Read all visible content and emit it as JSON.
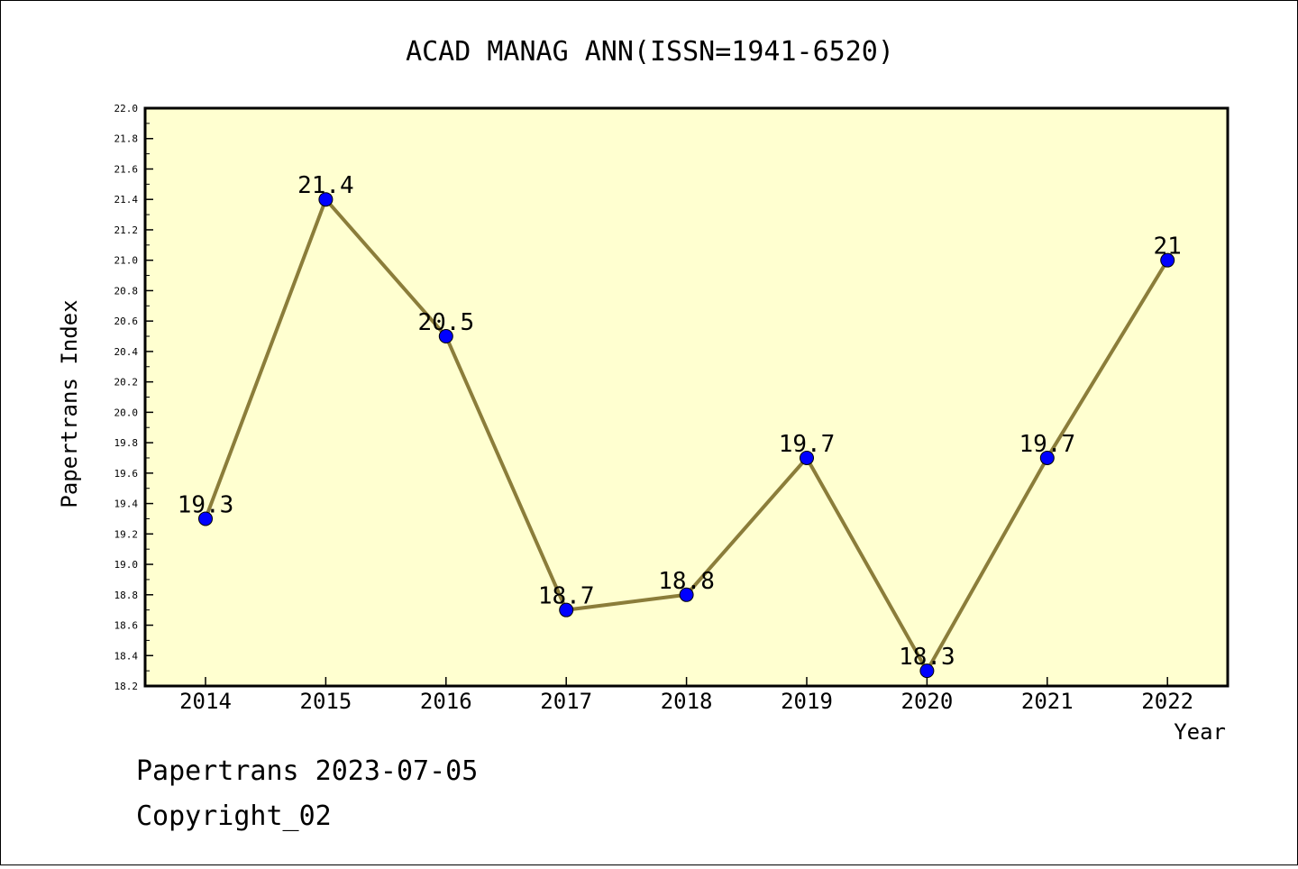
{
  "chart_data": {
    "type": "line",
    "title": "ACAD MANAG ANN(ISSN=1941-6520)",
    "xlabel": "Year",
    "ylabel": "Papertrans Index",
    "categories": [
      "2014",
      "2015",
      "2016",
      "2017",
      "2018",
      "2019",
      "2020",
      "2021",
      "2022"
    ],
    "values": [
      19.3,
      21.4,
      20.5,
      18.7,
      18.8,
      19.7,
      18.3,
      19.7,
      21
    ],
    "data_labels": [
      "19.3",
      "21.4",
      "20.5",
      "18.7",
      "18.8",
      "19.7",
      "18.3",
      "19.7",
      "21"
    ],
    "ylim": [
      18.2,
      22.0
    ],
    "yticks": [
      "18.2",
      "18.4",
      "18.6",
      "18.8",
      "19.0",
      "19.2",
      "19.4",
      "19.6",
      "19.8",
      "20.0",
      "20.2",
      "20.4",
      "20.6",
      "20.8",
      "21.0",
      "21.2",
      "21.4",
      "21.6",
      "21.8",
      "22.0"
    ],
    "grid": false,
    "line_color": "#8b7d3a",
    "marker_color": "#0000ff",
    "plot_background": "#ffffd0"
  },
  "footer": {
    "line1": "Papertrans 2023-07-05",
    "line2": "Copyright_02"
  }
}
